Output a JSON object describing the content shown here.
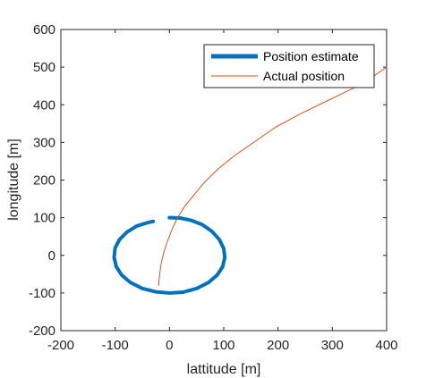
{
  "chart_data": {
    "type": "line",
    "title": "",
    "xlabel": "lattitude [m]",
    "ylabel": "longitude [m]",
    "xlim": [
      -200,
      400
    ],
    "ylim": [
      -200,
      600
    ],
    "xticks": [
      -200,
      -100,
      0,
      100,
      200,
      300,
      400
    ],
    "yticks": [
      -200,
      -100,
      0,
      100,
      200,
      300,
      400,
      500,
      600
    ],
    "xtick_labels": [
      "-200",
      "-100",
      "0",
      "100",
      "200",
      "300",
      "400"
    ],
    "ytick_labels": [
      "-200",
      "-100",
      "0",
      "100",
      "200",
      "300",
      "400",
      "500",
      "600"
    ],
    "grid": false,
    "legend_position": "top-right",
    "series": [
      {
        "name": "Position estimate",
        "color": "#0072BD",
        "style": "thick-noisy",
        "x": [
          0,
          20,
          40,
          60,
          78,
          92,
          100,
          102,
          98,
          88,
          72,
          50,
          25,
          0,
          -25,
          -50,
          -72,
          -88,
          -98,
          -102,
          -100,
          -92,
          -78,
          -60,
          -40,
          -30
        ],
        "y": [
          100,
          99,
          93,
          82,
          64,
          42,
          18,
          -5,
          -30,
          -52,
          -72,
          -88,
          -98,
          -100,
          -97,
          -88,
          -72,
          -52,
          -30,
          -5,
          20,
          42,
          62,
          78,
          87,
          90
        ]
      },
      {
        "name": "Actual position",
        "color": "#D95319",
        "style": "thin",
        "x": [
          -20,
          -18,
          -15,
          -10,
          -3,
          5,
          15,
          28,
          45,
          65,
          90,
          120,
          155,
          195,
          240,
          290,
          340,
          380,
          400
        ],
        "y": [
          -80,
          -50,
          -20,
          10,
          40,
          70,
          100,
          130,
          160,
          195,
          230,
          265,
          300,
          340,
          375,
          410,
          445,
          480,
          500
        ]
      }
    ]
  }
}
